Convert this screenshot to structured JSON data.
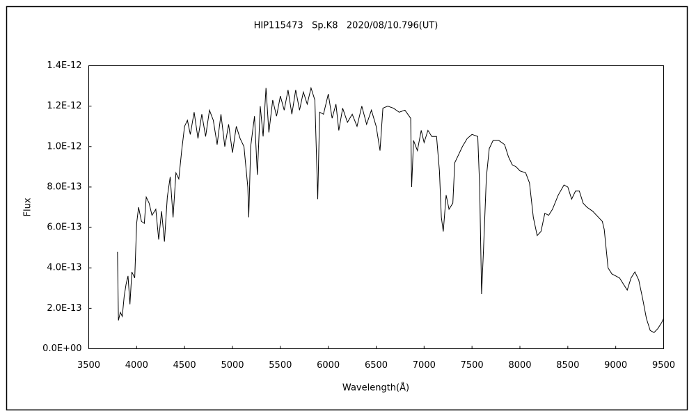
{
  "chart_data": {
    "type": "line",
    "title": "HIP115473   Sp.K8   2020/08/10.796(UT)",
    "x_label": "Wavelength(Å)",
    "y_label": "Flux",
    "color": "#000000",
    "xlim": [
      3500,
      9500
    ],
    "xticks": [
      3500,
      4000,
      4500,
      5000,
      5500,
      6000,
      6500,
      7000,
      7500,
      8000,
      8500,
      9000,
      9500
    ],
    "ylim": [
      0,
      1.4e-12
    ],
    "yticks": [
      {
        "value": 0,
        "label": "0.0E+00"
      },
      {
        "value": 2e-13,
        "label": "2.0E-13"
      },
      {
        "value": 4e-13,
        "label": "4.0E-13"
      },
      {
        "value": 6e-13,
        "label": "6.0E-13"
      },
      {
        "value": 8e-13,
        "label": "8.0E-13"
      },
      {
        "value": 1e-12,
        "label": "1.0E-12"
      },
      {
        "value": 1.2e-12,
        "label": "1.2E-12"
      },
      {
        "value": 1.4e-12,
        "label": "1.4E-12"
      }
    ],
    "grid": false,
    "x": [
      3800,
      3810,
      3830,
      3850,
      3870,
      3890,
      3910,
      3930,
      3950,
      3980,
      4000,
      4020,
      4050,
      4080,
      4100,
      4130,
      4160,
      4200,
      4230,
      4260,
      4290,
      4320,
      4350,
      4380,
      4410,
      4440,
      4470,
      4500,
      4530,
      4560,
      4600,
      4640,
      4680,
      4720,
      4760,
      4800,
      4840,
      4880,
      4920,
      4960,
      5000,
      5040,
      5080,
      5120,
      5160,
      5170,
      5190,
      5230,
      5260,
      5290,
      5320,
      5350,
      5380,
      5420,
      5460,
      5500,
      5540,
      5580,
      5620,
      5660,
      5700,
      5740,
      5780,
      5820,
      5860,
      5890,
      5910,
      5950,
      6000,
      6040,
      6080,
      6110,
      6150,
      6200,
      6250,
      6300,
      6350,
      6400,
      6450,
      6500,
      6540,
      6570,
      6620,
      6680,
      6740,
      6800,
      6860,
      6870,
      6890,
      6930,
      6970,
      7000,
      7040,
      7080,
      7130,
      7160,
      7180,
      7200,
      7230,
      7260,
      7300,
      7320,
      7360,
      7400,
      7450,
      7500,
      7560,
      7580,
      7600,
      7620,
      7650,
      7680,
      7720,
      7780,
      7840,
      7880,
      7920,
      7960,
      8000,
      8060,
      8100,
      8140,
      8180,
      8220,
      8260,
      8300,
      8340,
      8400,
      8460,
      8500,
      8540,
      8580,
      8620,
      8660,
      8700,
      8760,
      8820,
      8860,
      8880,
      8920,
      8960,
      9000,
      9040,
      9080,
      9120,
      9160,
      9200,
      9240,
      9280,
      9320,
      9360,
      9400,
      9440,
      9480,
      9500
    ],
    "values": [
      4.8e-13,
      1.4e-13,
      1.8e-13,
      1.6e-13,
      2.6e-13,
      3.2e-13,
      3.6e-13,
      2.2e-13,
      3.8e-13,
      3.5e-13,
      6.2e-13,
      7e-13,
      6.3e-13,
      6.2e-13,
      7.5e-13,
      7.2e-13,
      6.6e-13,
      6.9e-13,
      5.4e-13,
      6.8e-13,
      5.3e-13,
      7.5e-13,
      8.5e-13,
      6.5e-13,
      8.7e-13,
      8.4e-13,
      9.8e-13,
      1.1e-12,
      1.13e-12,
      1.06e-12,
      1.17e-12,
      1.04e-12,
      1.16e-12,
      1.05e-12,
      1.18e-12,
      1.13e-12,
      1.01e-12,
      1.16e-12,
      1e-12,
      1.11e-12,
      9.7e-13,
      1.1e-12,
      1.04e-12,
      1e-12,
      8e-13,
      6.5e-13,
      1e-12,
      1.15e-12,
      8.6e-13,
      1.2e-12,
      1.05e-12,
      1.29e-12,
      1.07e-12,
      1.23e-12,
      1.15e-12,
      1.25e-12,
      1.18e-12,
      1.28e-12,
      1.16e-12,
      1.28e-12,
      1.18e-12,
      1.27e-12,
      1.21e-12,
      1.29e-12,
      1.23e-12,
      7.4e-13,
      1.17e-12,
      1.16e-12,
      1.26e-12,
      1.14e-12,
      1.21e-12,
      1.08e-12,
      1.19e-12,
      1.12e-12,
      1.16e-12,
      1.1e-12,
      1.2e-12,
      1.11e-12,
      1.18e-12,
      1.1e-12,
      9.8e-13,
      1.19e-12,
      1.2e-12,
      1.19e-12,
      1.17e-12,
      1.18e-12,
      1.14e-12,
      8e-13,
      1.03e-12,
      9.8e-13,
      1.08e-12,
      1.02e-12,
      1.08e-12,
      1.05e-12,
      1.05e-12,
      8.8e-13,
      6.5e-13,
      5.8e-13,
      7.6e-13,
      6.9e-13,
      7.2e-13,
      9.2e-13,
      9.6e-13,
      1e-12,
      1.04e-12,
      1.06e-12,
      1.05e-12,
      8e-13,
      2.7e-13,
      4.9e-13,
      8.5e-13,
      9.9e-13,
      1.03e-12,
      1.03e-12,
      1.01e-12,
      9.5e-13,
      9.1e-13,
      9e-13,
      8.8e-13,
      8.7e-13,
      8.2e-13,
      6.5e-13,
      5.6e-13,
      5.8e-13,
      6.7e-13,
      6.6e-13,
      6.9e-13,
      7.6e-13,
      8.1e-13,
      8e-13,
      7.4e-13,
      7.8e-13,
      7.8e-13,
      7.2e-13,
      7e-13,
      6.8e-13,
      6.5e-13,
      6.3e-13,
      5.9e-13,
      4e-13,
      3.7e-13,
      3.6e-13,
      3.5e-13,
      3.2e-13,
      2.9e-13,
      3.5e-13,
      3.8e-13,
      3.4e-13,
      2.5e-13,
      1.5e-13,
      9e-14,
      8e-14,
      1e-13,
      1.3e-13,
      1.5e-13
    ]
  }
}
